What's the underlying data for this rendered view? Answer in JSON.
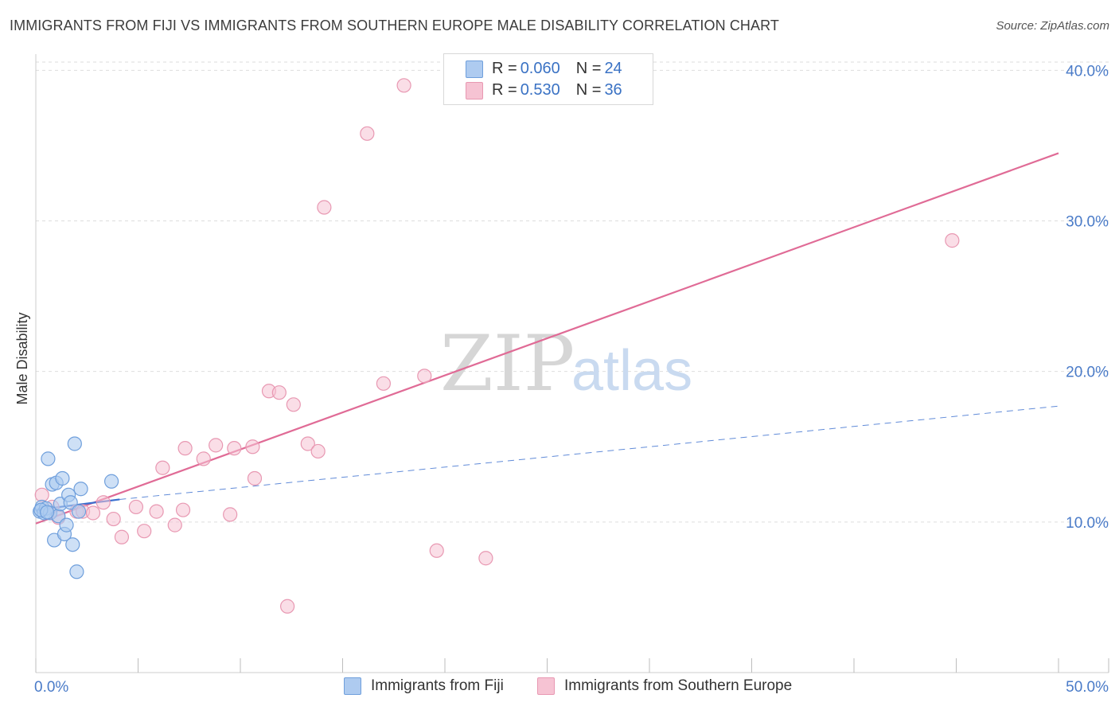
{
  "title": "IMMIGRANTS FROM FIJI VS IMMIGRANTS FROM SOUTHERN EUROPE MALE DISABILITY CORRELATION CHART",
  "source": "Source: ZipAtlas.com",
  "watermark": {
    "zip": "ZIP",
    "atlas": "atlas"
  },
  "legend": {
    "fiji": {
      "r_label": "R = ",
      "r_value": "0.060",
      "n_label": "N = ",
      "n_value": "24"
    },
    "southern_europe": {
      "r_label": "R = ",
      "r_value": "0.530",
      "n_label": "N = ",
      "n_value": "36"
    }
  },
  "colors": {
    "fiji_fill": "#aecbf0",
    "fiji_stroke": "#6f9fdc",
    "fiji_line": "#3a6fcf",
    "se_fill": "#f6c3d3",
    "se_stroke": "#e898b2",
    "se_line": "#e06b96",
    "grid": "#dddddd",
    "tick_text": "#4a7bc8"
  },
  "chart_data": {
    "type": "scatter",
    "title": "IMMIGRANTS FROM FIJI VS IMMIGRANTS FROM SOUTHERN EUROPE MALE DISABILITY CORRELATION CHART",
    "xlabel": "",
    "ylabel": "Male Disability",
    "xlim": [
      0,
      50
    ],
    "ylim": [
      0,
      41.5
    ],
    "x_tick_labels": [
      "0.0%",
      "50.0%"
    ],
    "y_ticks": [
      10,
      20,
      30,
      40
    ],
    "y_tick_labels": [
      "10.0%",
      "20.0%",
      "30.0%",
      "40.0%"
    ],
    "grid": true,
    "series": [
      {
        "name": "Immigrants from Fiji",
        "points": [
          [
            0.2,
            10.7
          ],
          [
            0.3,
            11.0
          ],
          [
            0.4,
            10.6
          ],
          [
            0.5,
            10.9
          ],
          [
            0.6,
            14.2
          ],
          [
            0.7,
            10.6
          ],
          [
            0.8,
            12.5
          ],
          [
            0.9,
            8.8
          ],
          [
            1.0,
            12.6
          ],
          [
            1.1,
            10.4
          ],
          [
            1.2,
            11.2
          ],
          [
            1.3,
            12.9
          ],
          [
            1.4,
            9.2
          ],
          [
            1.5,
            9.8
          ],
          [
            1.6,
            11.8
          ],
          [
            1.7,
            11.3
          ],
          [
            1.8,
            8.5
          ],
          [
            1.9,
            15.2
          ],
          [
            2.0,
            6.7
          ],
          [
            2.1,
            10.7
          ],
          [
            2.2,
            12.2
          ],
          [
            0.25,
            10.8
          ],
          [
            0.55,
            10.65
          ],
          [
            3.7,
            12.7
          ]
        ],
        "trend": {
          "x": [
            0,
            4.1
          ],
          "y": [
            10.8,
            11.5
          ],
          "dashed_extension": {
            "x": [
              4.1,
              50
            ],
            "y": [
              11.5,
              17.7
            ]
          }
        }
      },
      {
        "name": "Immigrants from Southern Europe",
        "points": [
          [
            0.3,
            11.8
          ],
          [
            0.8,
            11.0
          ],
          [
            1.1,
            10.3
          ],
          [
            2.0,
            10.7
          ],
          [
            2.3,
            10.7
          ],
          [
            2.8,
            10.6
          ],
          [
            3.3,
            11.3
          ],
          [
            3.8,
            10.2
          ],
          [
            4.2,
            9.0
          ],
          [
            4.9,
            11.0
          ],
          [
            5.3,
            9.4
          ],
          [
            5.9,
            10.7
          ],
          [
            6.2,
            13.6
          ],
          [
            6.8,
            9.8
          ],
          [
            7.2,
            10.8
          ],
          [
            7.3,
            14.9
          ],
          [
            8.2,
            14.2
          ],
          [
            8.8,
            15.1
          ],
          [
            9.5,
            10.5
          ],
          [
            9.7,
            14.9
          ],
          [
            10.6,
            15.0
          ],
          [
            10.7,
            12.9
          ],
          [
            11.4,
            18.7
          ],
          [
            11.9,
            18.6
          ],
          [
            12.3,
            4.4
          ],
          [
            12.6,
            17.8
          ],
          [
            13.3,
            15.2
          ],
          [
            13.8,
            14.7
          ],
          [
            14.1,
            30.9
          ],
          [
            16.2,
            35.8
          ],
          [
            17.0,
            19.2
          ],
          [
            18.0,
            39.0
          ],
          [
            19.0,
            19.7
          ],
          [
            19.6,
            8.1
          ],
          [
            22.0,
            7.6
          ],
          [
            44.8,
            28.7
          ]
        ],
        "trend": {
          "x": [
            0,
            50
          ],
          "y": [
            9.9,
            34.5
          ]
        }
      }
    ]
  },
  "bottom_legend": {
    "fiji_label": "Immigrants from Fiji",
    "se_label": "Immigrants from Southern Europe"
  }
}
